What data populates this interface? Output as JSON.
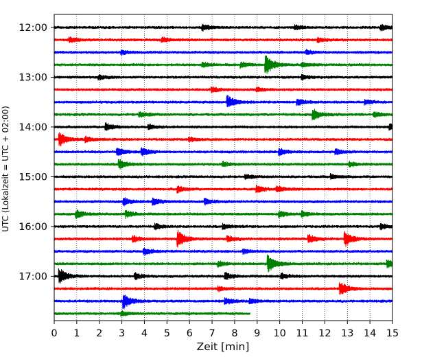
{
  "chart_data": {
    "type": "line",
    "subtype": "helicorder",
    "xlabel": "Zeit  [min]",
    "ylabel": "UTC (Lokalzeit = UTC + 02:00)",
    "xlim": [
      0,
      15
    ],
    "x_ticks": [
      "0",
      "1",
      "2",
      "3",
      "4",
      "5",
      "6",
      "7",
      "8",
      "9",
      "10",
      "11",
      "12",
      "13",
      "14",
      "15"
    ],
    "y_tick_labels": [
      "12:00",
      "13:00",
      "14:00",
      "15:00",
      "16:00",
      "17:00"
    ],
    "grid": "vertical dotted lines at each minute",
    "trace_colors": [
      "#000000",
      "#ff0000",
      "#0000ff",
      "#008000"
    ],
    "traces": [
      {
        "start": "12:00",
        "end_min": 15,
        "events": [
          {
            "t": 6.6,
            "amp": 0.35
          },
          {
            "t": 10.7,
            "amp": 0.25
          },
          {
            "t": 14.5,
            "amp": 0.35
          }
        ]
      },
      {
        "start": "12:15",
        "end_min": 15,
        "events": [
          {
            "t": 0.7,
            "amp": 0.3
          },
          {
            "t": 4.8,
            "amp": 0.25
          },
          {
            "t": 11.7,
            "amp": 0.25
          }
        ]
      },
      {
        "start": "12:30",
        "end_min": 15,
        "events": [
          {
            "t": 3.0,
            "amp": 0.25
          },
          {
            "t": 11.2,
            "amp": 0.25
          }
        ]
      },
      {
        "start": "12:45",
        "end_min": 15,
        "events": [
          {
            "t": 6.6,
            "amp": 0.3
          },
          {
            "t": 8.3,
            "amp": 0.3
          },
          {
            "t": 9.4,
            "amp": 1.2
          },
          {
            "t": 11.0,
            "amp": 0.25
          }
        ]
      },
      {
        "start": "13:00",
        "end_min": 15,
        "events": [
          {
            "t": 2.0,
            "amp": 0.25
          },
          {
            "t": 11.0,
            "amp": 0.25
          }
        ]
      },
      {
        "start": "13:15",
        "end_min": 15,
        "events": [
          {
            "t": 7.0,
            "amp": 0.3
          },
          {
            "t": 9.0,
            "amp": 0.25
          }
        ]
      },
      {
        "start": "13:30",
        "end_min": 15,
        "events": [
          {
            "t": 7.7,
            "amp": 0.75
          },
          {
            "t": 10.8,
            "amp": 0.35
          },
          {
            "t": 13.8,
            "amp": 0.25
          }
        ]
      },
      {
        "start": "13:45",
        "end_min": 15,
        "events": [
          {
            "t": 3.8,
            "amp": 0.3
          },
          {
            "t": 11.5,
            "amp": 0.65
          },
          {
            "t": 14.2,
            "amp": 0.3
          }
        ]
      },
      {
        "start": "14:00",
        "end_min": 15,
        "events": [
          {
            "t": 2.3,
            "amp": 0.45
          },
          {
            "t": 4.2,
            "amp": 0.25
          },
          {
            "t": 14.9,
            "amp": 0.35
          }
        ]
      },
      {
        "start": "14:15",
        "end_min": 15,
        "events": [
          {
            "t": 0.25,
            "amp": 0.8
          },
          {
            "t": 1.4,
            "amp": 0.3
          },
          {
            "t": 6.0,
            "amp": 0.25
          }
        ]
      },
      {
        "start": "14:30",
        "end_min": 15,
        "events": [
          {
            "t": 2.8,
            "amp": 0.45
          },
          {
            "t": 3.9,
            "amp": 0.45
          },
          {
            "t": 10.0,
            "amp": 0.4
          },
          {
            "t": 12.5,
            "amp": 0.3
          }
        ]
      },
      {
        "start": "14:45",
        "end_min": 15,
        "events": [
          {
            "t": 2.9,
            "amp": 0.55
          },
          {
            "t": 7.5,
            "amp": 0.25
          },
          {
            "t": 13.1,
            "amp": 0.25
          }
        ]
      },
      {
        "start": "15:00",
        "end_min": 15,
        "events": [
          {
            "t": 8.5,
            "amp": 0.25
          },
          {
            "t": 12.3,
            "amp": 0.25
          }
        ]
      },
      {
        "start": "15:15",
        "end_min": 15,
        "events": [
          {
            "t": 5.5,
            "amp": 0.35
          },
          {
            "t": 9.0,
            "amp": 0.4
          },
          {
            "t": 9.9,
            "amp": 0.35
          }
        ]
      },
      {
        "start": "15:30",
        "end_min": 15,
        "events": [
          {
            "t": 3.1,
            "amp": 0.45
          },
          {
            "t": 4.4,
            "amp": 0.4
          },
          {
            "t": 6.7,
            "amp": 0.3
          }
        ]
      },
      {
        "start": "15:45",
        "end_min": 15,
        "events": [
          {
            "t": 1.0,
            "amp": 0.45
          },
          {
            "t": 3.2,
            "amp": 0.4
          },
          {
            "t": 10.0,
            "amp": 0.4
          },
          {
            "t": 11.0,
            "amp": 0.3
          }
        ]
      },
      {
        "start": "16:00",
        "end_min": 15,
        "events": [
          {
            "t": 4.5,
            "amp": 0.3
          },
          {
            "t": 7.5,
            "amp": 0.3
          },
          {
            "t": 14.5,
            "amp": 0.3
          }
        ]
      },
      {
        "start": "16:15",
        "end_min": 15,
        "events": [
          {
            "t": 3.5,
            "amp": 0.35
          },
          {
            "t": 5.5,
            "amp": 1.0
          },
          {
            "t": 7.7,
            "amp": 0.35
          },
          {
            "t": 11.3,
            "amp": 0.5
          },
          {
            "t": 12.9,
            "amp": 0.9
          }
        ]
      },
      {
        "start": "16:30",
        "end_min": 15,
        "events": [
          {
            "t": 4.0,
            "amp": 0.4
          },
          {
            "t": 8.4,
            "amp": 0.25
          }
        ]
      },
      {
        "start": "16:45",
        "end_min": 15,
        "events": [
          {
            "t": 7.3,
            "amp": 0.3
          },
          {
            "t": 9.5,
            "amp": 1.0
          },
          {
            "t": 14.8,
            "amp": 0.4
          }
        ]
      },
      {
        "start": "17:00",
        "end_min": 15,
        "events": [
          {
            "t": 0.25,
            "amp": 0.9
          },
          {
            "t": 3.6,
            "amp": 0.35
          },
          {
            "t": 7.6,
            "amp": 0.4
          },
          {
            "t": 10.1,
            "amp": 0.3
          }
        ]
      },
      {
        "start": "17:15",
        "end_min": 15,
        "events": [
          {
            "t": 7.3,
            "amp": 0.25
          },
          {
            "t": 12.7,
            "amp": 0.75
          }
        ]
      },
      {
        "start": "17:30",
        "end_min": 15,
        "events": [
          {
            "t": 3.1,
            "amp": 0.85
          },
          {
            "t": 7.6,
            "amp": 0.4
          },
          {
            "t": 8.7,
            "amp": 0.3
          }
        ]
      },
      {
        "start": "17:45",
        "end_min": 8.7,
        "events": [
          {
            "t": 3.0,
            "amp": 0.25
          }
        ]
      }
    ]
  }
}
